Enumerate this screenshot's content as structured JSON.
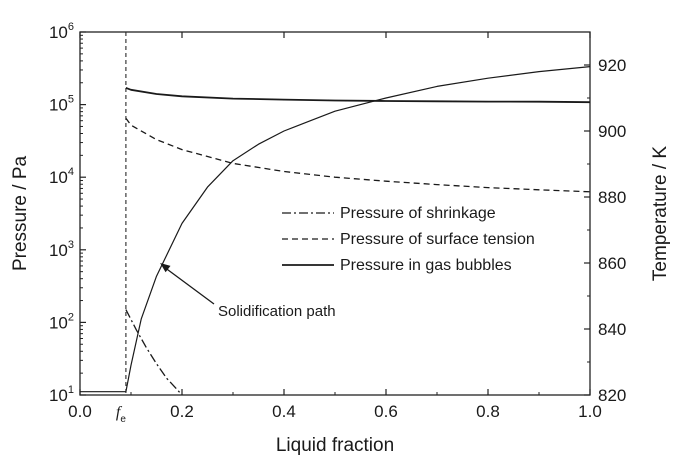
{
  "chart_data": {
    "type": "line",
    "title": "",
    "xlabel": "Liquid fraction",
    "ylabel_left": "Pressure / Pa",
    "ylabel_right": "Temperature / K",
    "xlim": [
      0.0,
      1.0
    ],
    "ylim_left": [
      10,
      1000000
    ],
    "ylim_right": [
      820,
      930
    ],
    "y_left_scale": "log",
    "x_ticks": [
      "0.0",
      "0.2",
      "0.4",
      "0.6",
      "0.8",
      "1.0"
    ],
    "y_left_ticks": [
      {
        "base": "10",
        "exp": "1",
        "value": 10
      },
      {
        "base": "10",
        "exp": "2",
        "value": 100
      },
      {
        "base": "10",
        "exp": "3",
        "value": 1000
      },
      {
        "base": "10",
        "exp": "4",
        "value": 10000
      },
      {
        "base": "10",
        "exp": "5",
        "value": 100000
      },
      {
        "base": "10",
        "exp": "6",
        "value": 1000000
      }
    ],
    "y_right_ticks": [
      "820",
      "840",
      "860",
      "880",
      "900",
      "920"
    ],
    "fe": {
      "label": "f",
      "subscript": "e",
      "x": 0.09
    },
    "grid": false,
    "legend_position": "center-right",
    "series": [
      {
        "name": "Pressure of shrinkage",
        "style": "dashdot",
        "axis": "left",
        "x": [
          0.09,
          0.11,
          0.13,
          0.15,
          0.17,
          0.19,
          0.2
        ],
        "y": [
          150,
          80,
          45,
          27,
          17,
          12,
          10
        ]
      },
      {
        "name": "Pressure of surface tension",
        "style": "dashed",
        "axis": "left",
        "x": [
          0.09,
          0.1,
          0.15,
          0.2,
          0.3,
          0.4,
          0.5,
          0.6,
          0.7,
          0.8,
          0.9,
          1.0
        ],
        "y": [
          65000,
          52000,
          33000,
          24000,
          15500,
          12000,
          10000,
          8800,
          7900,
          7200,
          6700,
          6300
        ]
      },
      {
        "name": "Pressure in gas bubbles",
        "style": "solid",
        "axis": "left",
        "x": [
          0.09,
          0.1,
          0.15,
          0.2,
          0.3,
          0.4,
          0.5,
          0.6,
          0.7,
          0.8,
          0.9,
          1.0
        ],
        "y": [
          170000,
          160000,
          140000,
          130000,
          121000,
          117000,
          114000,
          112000,
          111000,
          110000,
          109500,
          108000
        ]
      },
      {
        "name": "",
        "style": "solid-thin",
        "axis": "right",
        "x": [
          0.0,
          0.09,
          0.1,
          0.12,
          0.15,
          0.2,
          0.25,
          0.3,
          0.35,
          0.4,
          0.45,
          0.5,
          0.6,
          0.7,
          0.8,
          0.9,
          1.0
        ],
        "y": [
          821,
          821,
          829,
          843,
          856,
          872,
          883,
          891,
          896,
          900,
          903,
          906,
          910,
          913.5,
          916,
          918,
          919.5
        ]
      }
    ],
    "annotations": [
      {
        "text": "Solidification path",
        "points_to": {
          "x": 0.157,
          "y": 860,
          "axis": "right"
        }
      }
    ]
  }
}
